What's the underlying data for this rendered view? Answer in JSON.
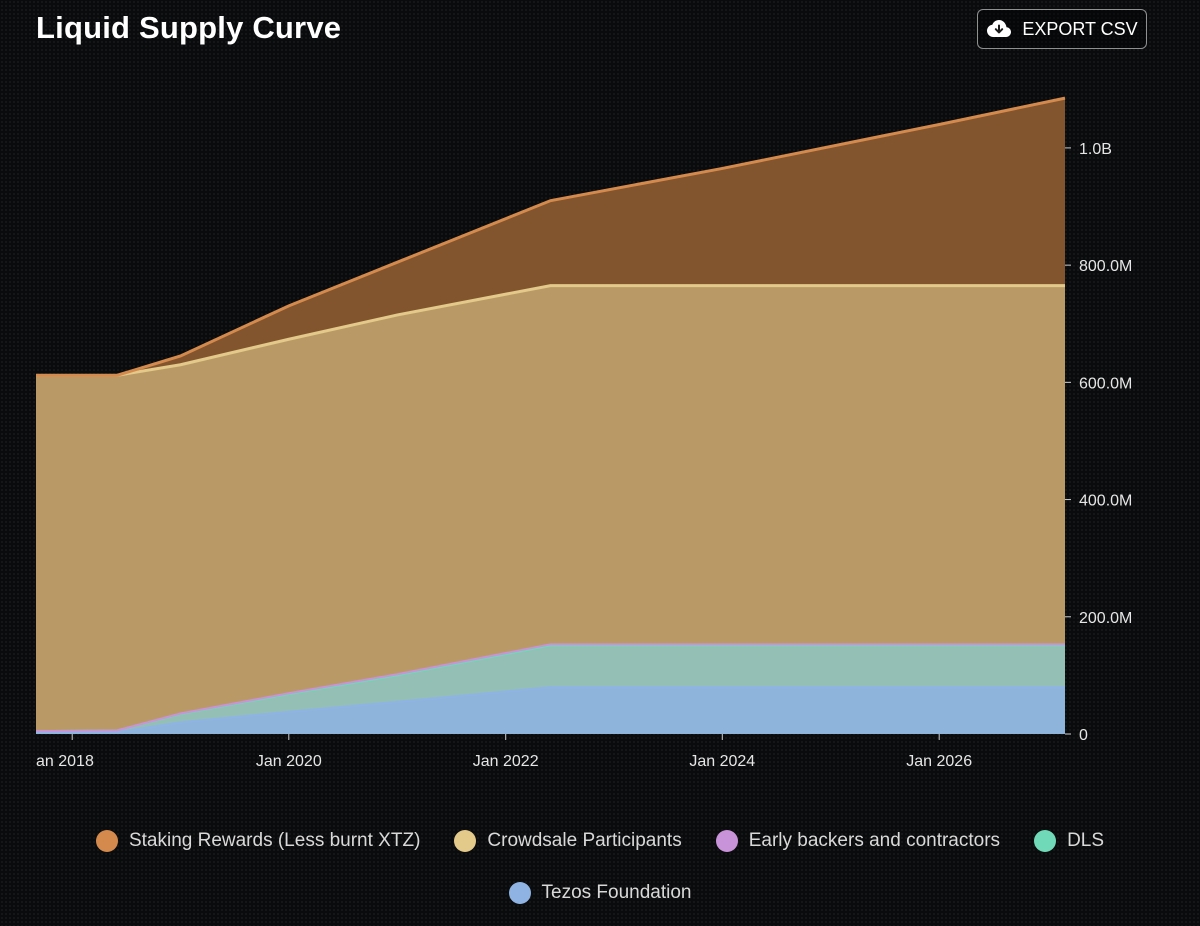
{
  "header": {
    "title": "Liquid Supply Curve",
    "export_label": "EXPORT CSV",
    "export_icon": "cloud-download-icon"
  },
  "chart_data": {
    "type": "area",
    "stacked": true,
    "title": "Liquid Supply Curve",
    "xlabel": "",
    "ylabel": "",
    "x_ticks": [
      "an 2018",
      "Jan 2020",
      "Jan 2022",
      "Jan 2024",
      "Jan 2026"
    ],
    "y_ticks": [
      "0",
      "200.0M",
      "400.0M",
      "600.0M",
      "800.0M",
      "1.0B"
    ],
    "xlim": [
      "2017-09-01",
      "2027-03-01"
    ],
    "ylim": [
      0,
      1150000000
    ],
    "x": [
      "2017-09-01",
      "2018-06-01",
      "2019-01-01",
      "2020-01-01",
      "2021-01-01",
      "2022-06-01",
      "2024-01-01",
      "2026-01-01",
      "2027-03-01"
    ],
    "series": [
      {
        "name": "Tezos Foundation",
        "color": "#8fb4dc",
        "values": [
          3000000,
          3000000,
          20000000,
          38000000,
          55000000,
          80000000,
          80000000,
          80000000,
          80000000
        ]
      },
      {
        "name": "DLS",
        "color": "#94bfb5",
        "values": [
          2000000,
          3000000,
          14000000,
          30000000,
          45000000,
          71000000,
          71000000,
          71000000,
          71000000
        ]
      },
      {
        "name": "Early backers and contractors",
        "color": "#c893d8",
        "values": [
          0,
          0,
          1000000,
          1500000,
          2000000,
          2000000,
          2000000,
          2000000,
          2000000
        ]
      },
      {
        "name": "Crowdsale Participants",
        "color": "#b99a66",
        "values": [
          607000000,
          606000000,
          595000000,
          604000000,
          613000000,
          612000000,
          612000000,
          612000000,
          612000000
        ]
      },
      {
        "name": "Staking Rewards (Less burnt XTZ)",
        "color": "#82552f",
        "values": [
          0,
          0,
          15000000,
          57000000,
          90000000,
          145000000,
          200000000,
          275000000,
          320000000
        ]
      }
    ],
    "legend_position": "bottom",
    "grid": false
  },
  "legend": {
    "items": [
      {
        "label": "Staking Rewards (Less burnt XTZ)",
        "color": "#d48a4c"
      },
      {
        "label": "Crowdsale Participants",
        "color": "#e3c98a"
      },
      {
        "label": "Early backers and contractors",
        "color": "#c893d8"
      },
      {
        "label": "DLS",
        "color": "#6fd9b8"
      },
      {
        "label": "Tezos Foundation",
        "color": "#8fb4e3"
      }
    ]
  }
}
